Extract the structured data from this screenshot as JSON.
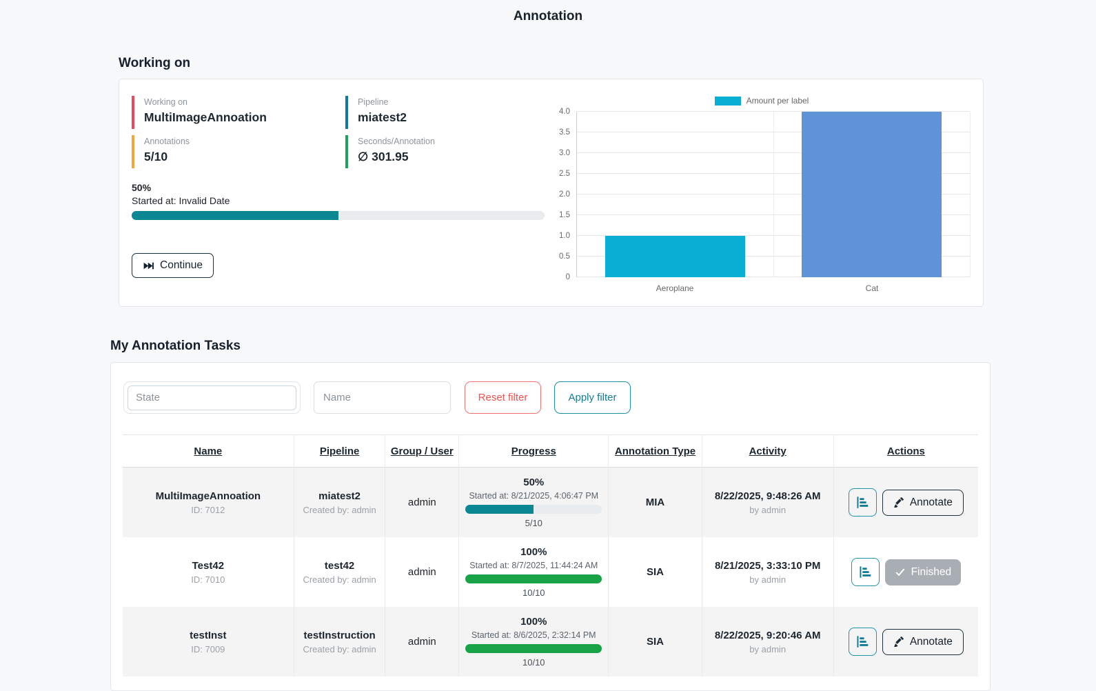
{
  "page": {
    "title": "Annotation"
  },
  "working_on": {
    "heading": "Working on",
    "stats": [
      {
        "label": "Working on",
        "value": "MultiImageAnnoation",
        "color": "#e8495f"
      },
      {
        "label": "Pipeline",
        "value": "miatest2",
        "color": "#1178a4"
      },
      {
        "label": "Annotations",
        "value": "5/10",
        "color": "#f0a63a"
      },
      {
        "label": "Seconds/Annotation",
        "value": "∅ 301.95",
        "color": "#1fa35c"
      }
    ],
    "progress_percent": "50%",
    "progress_value": 50,
    "progress_color": "#0b8693",
    "started_at": "Started at: Invalid Date",
    "continue_label": "Continue"
  },
  "chart_data": {
    "type": "bar",
    "title": "",
    "legend": "Amount per label",
    "legend_color": "#09b0d4",
    "legend_position": "top",
    "categories": [
      "Aeroplane",
      "Cat"
    ],
    "values": [
      1,
      4
    ],
    "bar_colors": [
      "#09b0d4",
      "#5f93d8"
    ],
    "xlabel": "",
    "ylabel": "",
    "ylim": [
      0,
      4
    ],
    "ytick_step": 0.5,
    "ytick_labels": [
      "0",
      "0.5",
      "1.0",
      "1.5",
      "2.0",
      "2.5",
      "3.0",
      "3.5",
      "4.0"
    ],
    "grid": true
  },
  "tasks": {
    "heading": "My Annotation Tasks",
    "filters": {
      "state_placeholder": "State",
      "name_placeholder": "Name",
      "reset_label": "Reset filter",
      "apply_label": "Apply filter"
    },
    "columns": [
      "Name",
      "Pipeline",
      "Group / User",
      "Progress",
      "Annotation Type",
      "Activity",
      "Actions"
    ],
    "rows": [
      {
        "name": "MultiImageAnnoation",
        "id": "ID: 7012",
        "pipeline": "miatest2",
        "created_by": "Created by: admin",
        "group_user": "admin",
        "progress_percent": "50%",
        "progress_value": 50,
        "progress_color": "#0b8693",
        "started_at": "Started at: 8/21/2025, 4:06:47 PM",
        "progress_fraction": "5/10",
        "annotation_type": "MIA",
        "activity_time": "8/22/2025, 9:48:26 AM",
        "activity_by": "by admin",
        "action": "Annotate",
        "action_state": "annotate"
      },
      {
        "name": "Test42",
        "id": "ID: 7010",
        "pipeline": "test42",
        "created_by": "Created by: admin",
        "group_user": "admin",
        "progress_percent": "100%",
        "progress_value": 100,
        "progress_color": "#17a346",
        "started_at": "Started at: 8/7/2025, 11:44:24 AM",
        "progress_fraction": "10/10",
        "annotation_type": "SIA",
        "activity_time": "8/21/2025, 3:33:10 PM",
        "activity_by": "by admin",
        "action": "Finished",
        "action_state": "finished"
      },
      {
        "name": "testInst",
        "id": "ID: 7009",
        "pipeline": "testInstruction",
        "created_by": "Created by: admin",
        "group_user": "admin",
        "progress_percent": "100%",
        "progress_value": 100,
        "progress_color": "#17a346",
        "started_at": "Started at: 8/6/2025, 2:32:14 PM",
        "progress_fraction": "10/10",
        "annotation_type": "SIA",
        "activity_time": "8/22/2025, 9:20:46 AM",
        "activity_by": "by admin",
        "action": "Annotate",
        "action_state": "annotate"
      }
    ]
  }
}
